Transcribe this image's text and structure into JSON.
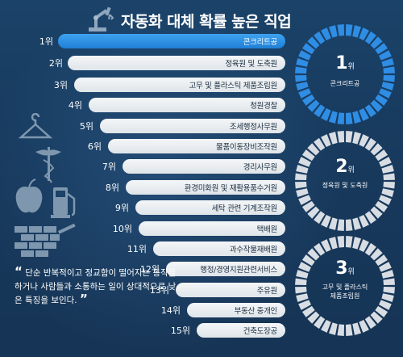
{
  "title": "자동화 대체 확률 높은 직업",
  "rank_suffix": "위",
  "ranking": [
    {
      "rank": "1위",
      "job": "콘크리트공"
    },
    {
      "rank": "2위",
      "job": "정육원 및 도축원"
    },
    {
      "rank": "3위",
      "job": "고무 및 플라스틱 제품조립원"
    },
    {
      "rank": "4위",
      "job": "청원경찰"
    },
    {
      "rank": "5위",
      "job": "조세행정사무원"
    },
    {
      "rank": "6위",
      "job": "물품이동장비조작원"
    },
    {
      "rank": "7위",
      "job": "경리사무원"
    },
    {
      "rank": "8위",
      "job": "환경미화원 및 재활용품수거원"
    },
    {
      "rank": "9위",
      "job": "세탁 관련 기계조작원"
    },
    {
      "rank": "10위",
      "job": "택배원"
    },
    {
      "rank": "11위",
      "job": "과수작물재배원"
    },
    {
      "rank": "12위",
      "job": "행정/경영지원관련서비스"
    },
    {
      "rank": "13위",
      "job": "주유원"
    },
    {
      "rank": "14위",
      "job": "부동산 중개인"
    },
    {
      "rank": "15위",
      "job": "건축도장공"
    }
  ],
  "highlights": [
    {
      "number": "1",
      "label_line1": "콘크리트공",
      "label_line2": "",
      "color": "#2f8de4"
    },
    {
      "number": "2",
      "label_line1": "정육원 및 도축원",
      "label_line2": "",
      "color": "#d8dde3"
    },
    {
      "number": "3",
      "label_line1": "고무 및 플라스틱",
      "label_line2": "제품조립원",
      "color": "#d8dde3"
    }
  ],
  "quote": {
    "open_mark": "“",
    "text": "단순 반복적이고 정교함이 떨어지는 동작을 하거나 사람들과 소통하는 일이 상대적으로 낮은 특징을 보인다.",
    "close_mark": "”"
  },
  "icons": [
    "robot-arm-icon",
    "hanger-icon",
    "caduceus-icon",
    "apple-icon",
    "gas-pump-icon",
    "brick-wall-icon"
  ],
  "colors": {
    "background": "#163a5c",
    "accent": "#2f8de4",
    "bar": "#e8ecf0"
  }
}
